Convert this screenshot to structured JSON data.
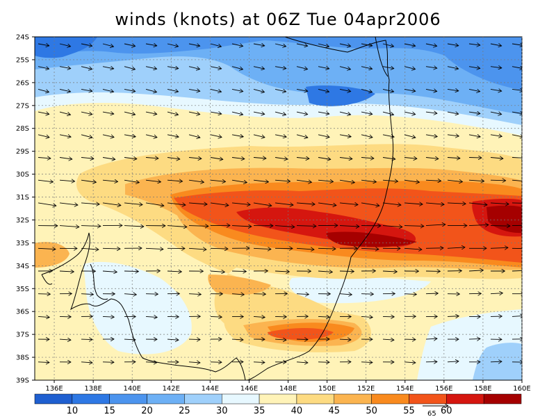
{
  "title": "winds (knots) at 06Z Tue 04apr2006",
  "lat_labels": [
    "24S",
    "25S",
    "26S",
    "27S",
    "28S",
    "29S",
    "30S",
    "31S",
    "32S",
    "33S",
    "34S",
    "35S",
    "36S",
    "37S",
    "38S",
    "39S"
  ],
  "lon_labels": [
    "136E",
    "138E",
    "140E",
    "142E",
    "144E",
    "146E",
    "148E",
    "150E",
    "152E",
    "154E",
    "156E",
    "158E",
    "160E"
  ],
  "colorbar": {
    "colors": [
      "#1f5fd0",
      "#2e78e4",
      "#4c94ee",
      "#6db0f5",
      "#9fd0fb",
      "#e7f8ff",
      "#fff3b8",
      "#fddb82",
      "#fbb450",
      "#f98a1e",
      "#f2541a",
      "#d5160f",
      "#a50000"
    ],
    "labels": [
      "10",
      "15",
      "20",
      "25",
      "30",
      "35",
      "40",
      "45",
      "50",
      "55",
      "60"
    ]
  },
  "reference_vector": {
    "label": "65"
  }
}
